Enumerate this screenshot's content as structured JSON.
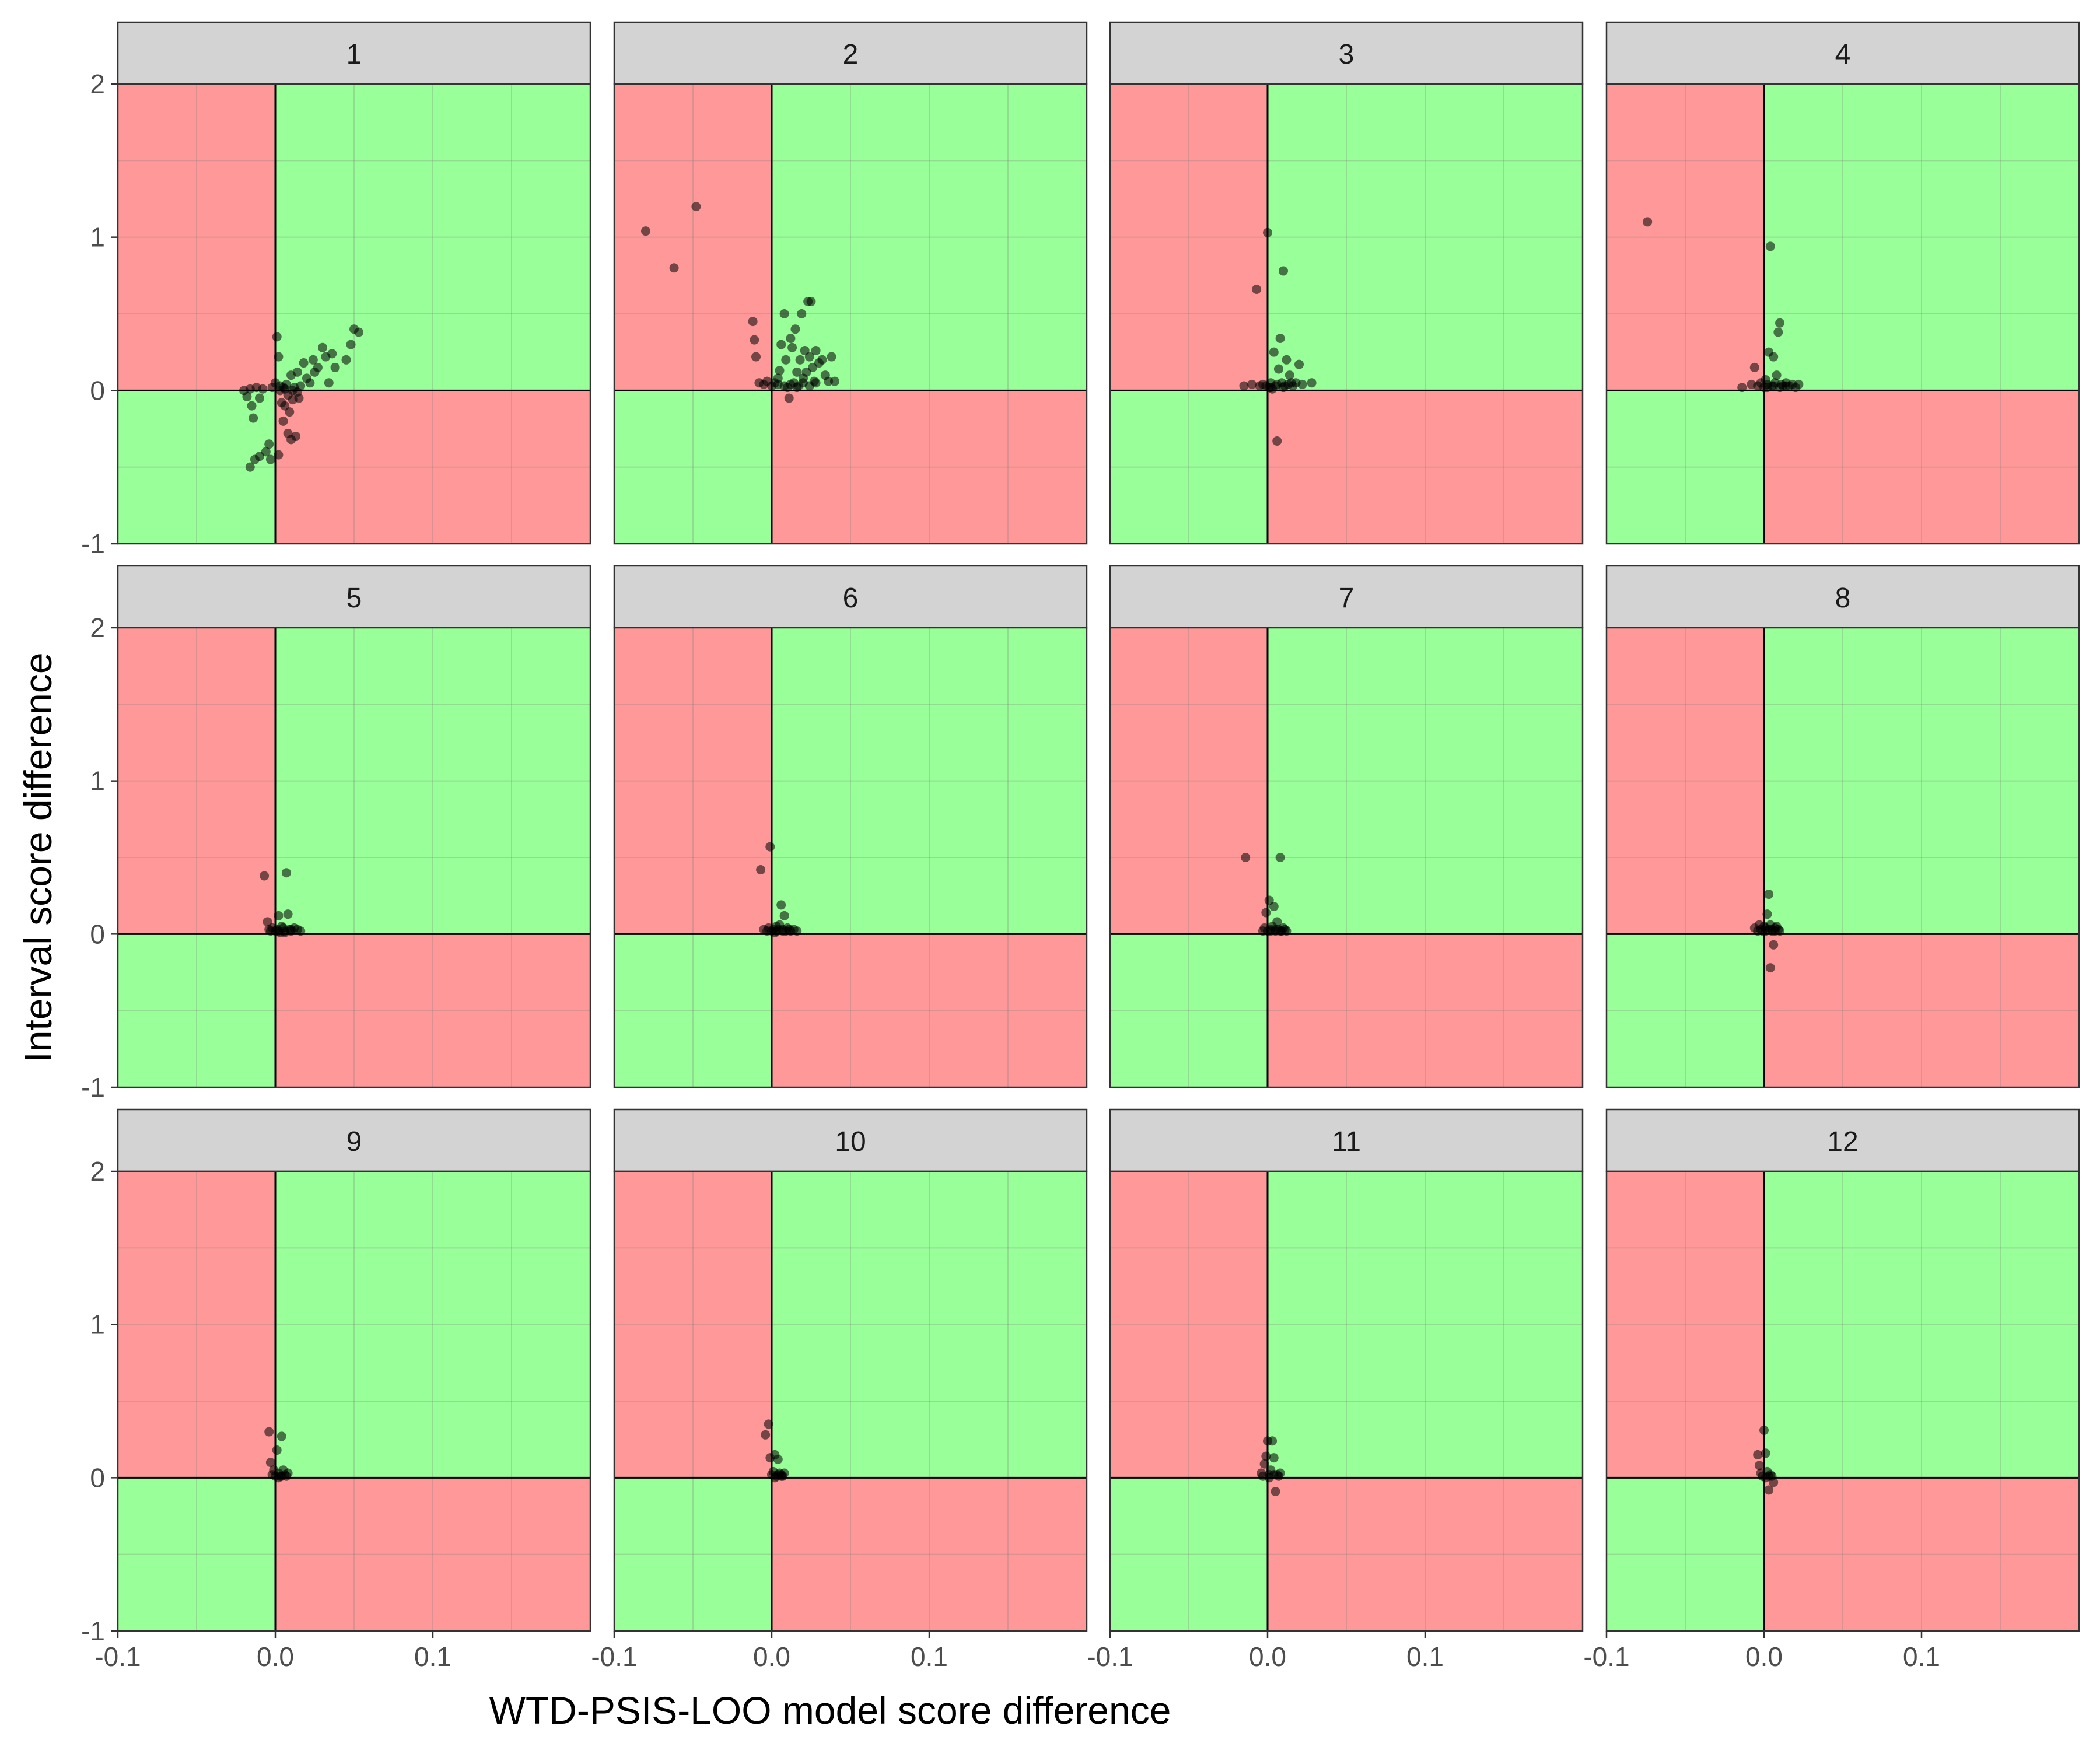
{
  "figure": {
    "xlabel": "WTD-PSIS-LOO model score difference",
    "ylabel": "Interval score difference"
  },
  "axes": {
    "x_ticks": [
      -0.1,
      0.0,
      0.1
    ],
    "x_tick_labels": [
      "-0.1",
      "0.0",
      "0.1"
    ],
    "y_ticks": [
      -1,
      0,
      1,
      2
    ],
    "y_tick_labels": [
      "-1",
      "0",
      "1",
      "2"
    ],
    "xlim": [
      -0.1,
      0.2
    ],
    "ylim": [
      -1,
      2
    ]
  },
  "colors": {
    "good_quadrant": "#99ff99",
    "bad_quadrant": "#ff9999",
    "strip": "#d3d3d3",
    "point": "#000000"
  },
  "chart_data": [
    {
      "type": "scatter",
      "panel": "1",
      "points": [
        [
          -0.02,
          0.0
        ],
        [
          -0.018,
          -0.04
        ],
        [
          -0.016,
          0.01
        ],
        [
          -0.015,
          -0.1
        ],
        [
          -0.014,
          -0.18
        ],
        [
          -0.012,
          0.02
        ],
        [
          -0.01,
          -0.05
        ],
        [
          -0.008,
          0.01
        ],
        [
          -0.006,
          -0.4
        ],
        [
          -0.004,
          -0.35
        ],
        [
          -0.002,
          0.02
        ],
        [
          0.0,
          0.05
        ],
        [
          0.001,
          0.35
        ],
        [
          0.002,
          0.22
        ],
        [
          0.003,
          0.03
        ],
        [
          0.004,
          -0.08
        ],
        [
          0.005,
          -0.2
        ],
        [
          0.006,
          0.01
        ],
        [
          0.007,
          0.04
        ],
        [
          0.008,
          -0.28
        ],
        [
          0.009,
          -0.14
        ],
        [
          0.01,
          0.1
        ],
        [
          0.011,
          -0.06
        ],
        [
          0.012,
          0.02
        ],
        [
          0.013,
          -0.3
        ],
        [
          0.014,
          0.12
        ],
        [
          0.015,
          -0.05
        ],
        [
          0.016,
          0.03
        ],
        [
          0.018,
          0.18
        ],
        [
          0.02,
          0.08
        ],
        [
          0.022,
          0.05
        ],
        [
          0.024,
          0.2
        ],
        [
          0.025,
          0.12
        ],
        [
          0.027,
          0.15
        ],
        [
          0.03,
          0.28
        ],
        [
          0.032,
          0.22
        ],
        [
          0.034,
          0.05
        ],
        [
          0.036,
          0.24
        ],
        [
          0.038,
          0.15
        ],
        [
          0.045,
          0.2
        ],
        [
          0.048,
          0.3
        ],
        [
          0.05,
          0.4
        ],
        [
          0.053,
          0.38
        ],
        [
          -0.016,
          -0.5
        ],
        [
          -0.013,
          -0.45
        ],
        [
          -0.01,
          -0.43
        ],
        [
          -0.003,
          -0.45
        ],
        [
          0.002,
          -0.42
        ],
        [
          0.006,
          -0.1
        ],
        [
          0.01,
          -0.32
        ],
        [
          0.003,
          0.0
        ],
        [
          0.005,
          0.02
        ],
        [
          0.008,
          -0.03
        ],
        [
          0.011,
          0.0
        ],
        [
          0.014,
          -0.01
        ]
      ]
    },
    {
      "type": "scatter",
      "panel": "2",
      "points": [
        [
          -0.08,
          1.04
        ],
        [
          -0.062,
          0.8
        ],
        [
          -0.048,
          1.2
        ],
        [
          -0.012,
          0.45
        ],
        [
          -0.011,
          0.33
        ],
        [
          -0.01,
          0.22
        ],
        [
          -0.008,
          0.05
        ],
        [
          -0.005,
          0.04
        ],
        [
          -0.003,
          0.06
        ],
        [
          0.0,
          0.03
        ],
        [
          0.002,
          0.05
        ],
        [
          0.004,
          0.08
        ],
        [
          0.005,
          0.13
        ],
        [
          0.006,
          0.3
        ],
        [
          0.008,
          0.5
        ],
        [
          0.009,
          0.2
        ],
        [
          0.01,
          0.02
        ],
        [
          0.011,
          -0.05
        ],
        [
          0.012,
          0.34
        ],
        [
          0.013,
          0.28
        ],
        [
          0.014,
          0.05
        ],
        [
          0.015,
          0.4
        ],
        [
          0.016,
          0.12
        ],
        [
          0.017,
          0.03
        ],
        [
          0.018,
          0.2
        ],
        [
          0.019,
          0.5
        ],
        [
          0.02,
          0.08
        ],
        [
          0.021,
          0.26
        ],
        [
          0.022,
          0.12
        ],
        [
          0.023,
          0.58
        ],
        [
          0.024,
          0.22
        ],
        [
          0.025,
          0.58
        ],
        [
          0.026,
          0.15
        ],
        [
          0.027,
          0.06
        ],
        [
          0.028,
          0.26
        ],
        [
          0.03,
          0.18
        ],
        [
          0.032,
          0.2
        ],
        [
          0.034,
          0.1
        ],
        [
          0.036,
          0.06
        ],
        [
          0.038,
          0.22
        ],
        [
          0.04,
          0.06
        ],
        [
          0.004,
          0.04
        ],
        [
          0.008,
          0.03
        ],
        [
          0.012,
          0.04
        ],
        [
          0.016,
          0.02
        ],
        [
          0.02,
          0.05
        ],
        [
          0.024,
          0.03
        ],
        [
          0.028,
          0.05
        ]
      ]
    },
    {
      "type": "scatter",
      "panel": "3",
      "points": [
        [
          -0.015,
          0.03
        ],
        [
          -0.01,
          0.04
        ],
        [
          -0.007,
          0.66
        ],
        [
          -0.005,
          0.03
        ],
        [
          -0.003,
          0.04
        ],
        [
          -0.001,
          0.03
        ],
        [
          0.0,
          1.03
        ],
        [
          0.001,
          0.02
        ],
        [
          0.002,
          0.05
        ],
        [
          0.003,
          0.01
        ],
        [
          0.004,
          0.25
        ],
        [
          0.005,
          0.03
        ],
        [
          0.006,
          -0.33
        ],
        [
          0.007,
          0.14
        ],
        [
          0.008,
          0.34
        ],
        [
          0.009,
          0.05
        ],
        [
          0.01,
          0.78
        ],
        [
          0.011,
          0.03
        ],
        [
          0.012,
          0.2
        ],
        [
          0.013,
          0.04
        ],
        [
          0.014,
          0.1
        ],
        [
          0.016,
          0.03
        ],
        [
          0.018,
          0.05
        ],
        [
          0.02,
          0.17
        ],
        [
          0.022,
          0.04
        ],
        [
          0.028,
          0.05
        ],
        [
          0.002,
          0.02
        ],
        [
          0.006,
          0.04
        ],
        [
          0.01,
          0.02
        ],
        [
          0.015,
          0.05
        ]
      ]
    },
    {
      "type": "scatter",
      "panel": "4",
      "points": [
        [
          -0.074,
          1.1
        ],
        [
          -0.014,
          0.02
        ],
        [
          -0.008,
          0.04
        ],
        [
          -0.006,
          0.15
        ],
        [
          -0.004,
          0.03
        ],
        [
          -0.002,
          0.05
        ],
        [
          0.0,
          0.02
        ],
        [
          0.001,
          0.07
        ],
        [
          0.002,
          0.04
        ],
        [
          0.003,
          0.25
        ],
        [
          0.004,
          0.94
        ],
        [
          0.005,
          0.03
        ],
        [
          0.006,
          0.22
        ],
        [
          0.007,
          0.05
        ],
        [
          0.008,
          0.1
        ],
        [
          0.009,
          0.38
        ],
        [
          0.01,
          0.44
        ],
        [
          0.011,
          0.04
        ],
        [
          0.012,
          0.03
        ],
        [
          0.014,
          0.05
        ],
        [
          0.016,
          0.03
        ],
        [
          0.018,
          0.04
        ],
        [
          0.02,
          0.02
        ],
        [
          0.022,
          0.04
        ],
        [
          0.002,
          0.02
        ],
        [
          0.006,
          0.03
        ],
        [
          0.01,
          0.02
        ],
        [
          0.014,
          0.03
        ]
      ]
    },
    {
      "type": "scatter",
      "panel": "5",
      "points": [
        [
          -0.007,
          0.38
        ],
        [
          -0.005,
          0.08
        ],
        [
          -0.004,
          0.03
        ],
        [
          -0.003,
          0.02
        ],
        [
          -0.002,
          0.04
        ],
        [
          0.0,
          0.02
        ],
        [
          0.001,
          0.03
        ],
        [
          0.002,
          0.12
        ],
        [
          0.003,
          0.01
        ],
        [
          0.004,
          0.05
        ],
        [
          0.005,
          0.04
        ],
        [
          0.006,
          0.02
        ],
        [
          0.007,
          0.4
        ],
        [
          0.008,
          0.13
        ],
        [
          0.009,
          0.03
        ],
        [
          0.01,
          0.02
        ],
        [
          0.012,
          0.04
        ],
        [
          0.014,
          0.03
        ],
        [
          0.016,
          0.02
        ],
        [
          0.002,
          0.02
        ],
        [
          0.006,
          0.01
        ],
        [
          0.01,
          0.03
        ]
      ]
    },
    {
      "type": "scatter",
      "panel": "6",
      "points": [
        [
          -0.007,
          0.42
        ],
        [
          -0.005,
          0.03
        ],
        [
          -0.003,
          0.02
        ],
        [
          -0.002,
          0.04
        ],
        [
          -0.001,
          0.57
        ],
        [
          0.0,
          0.02
        ],
        [
          0.001,
          0.03
        ],
        [
          0.002,
          0.01
        ],
        [
          0.003,
          0.05
        ],
        [
          0.004,
          0.03
        ],
        [
          0.005,
          0.06
        ],
        [
          0.006,
          0.19
        ],
        [
          0.007,
          0.03
        ],
        [
          0.008,
          0.12
        ],
        [
          0.009,
          0.02
        ],
        [
          0.01,
          0.04
        ],
        [
          0.012,
          0.02
        ],
        [
          0.014,
          0.03
        ],
        [
          0.016,
          0.02
        ],
        [
          0.003,
          0.02
        ],
        [
          0.007,
          0.02
        ],
        [
          0.011,
          0.03
        ]
      ]
    },
    {
      "type": "scatter",
      "panel": "7",
      "points": [
        [
          -0.014,
          0.5
        ],
        [
          -0.003,
          0.02
        ],
        [
          -0.002,
          0.04
        ],
        [
          -0.001,
          0.14
        ],
        [
          0.0,
          0.02
        ],
        [
          0.001,
          0.22
        ],
        [
          0.002,
          0.03
        ],
        [
          0.003,
          0.05
        ],
        [
          0.004,
          0.18
        ],
        [
          0.005,
          0.02
        ],
        [
          0.006,
          0.08
        ],
        [
          0.007,
          0.03
        ],
        [
          0.008,
          0.5
        ],
        [
          0.009,
          0.02
        ],
        [
          0.01,
          0.04
        ],
        [
          0.011,
          0.03
        ],
        [
          0.012,
          0.02
        ],
        [
          0.002,
          0.02
        ],
        [
          0.005,
          0.03
        ],
        [
          0.008,
          0.02
        ]
      ]
    },
    {
      "type": "scatter",
      "panel": "8",
      "points": [
        [
          -0.006,
          0.04
        ],
        [
          -0.004,
          0.02
        ],
        [
          -0.003,
          0.06
        ],
        [
          -0.002,
          0.03
        ],
        [
          -0.001,
          0.02
        ],
        [
          0.0,
          0.05
        ],
        [
          0.001,
          0.04
        ],
        [
          0.002,
          0.13
        ],
        [
          0.003,
          0.26
        ],
        [
          0.004,
          0.06
        ],
        [
          0.005,
          0.03
        ],
        [
          0.006,
          -0.07
        ],
        [
          0.007,
          0.02
        ],
        [
          0.008,
          0.05
        ],
        [
          0.009,
          0.03
        ],
        [
          0.01,
          0.02
        ],
        [
          0.004,
          -0.22
        ],
        [
          0.001,
          0.02
        ],
        [
          0.003,
          0.03
        ],
        [
          0.005,
          0.02
        ],
        [
          0.007,
          0.04
        ]
      ]
    },
    {
      "type": "scatter",
      "panel": "9",
      "points": [
        [
          -0.004,
          0.3
        ],
        [
          -0.003,
          0.1
        ],
        [
          -0.002,
          0.02
        ],
        [
          -0.001,
          0.05
        ],
        [
          0.0,
          0.01
        ],
        [
          0.001,
          0.18
        ],
        [
          0.002,
          0.03
        ],
        [
          0.003,
          0.01
        ],
        [
          0.004,
          0.27
        ],
        [
          0.005,
          0.05
        ],
        [
          0.006,
          0.02
        ],
        [
          0.007,
          0.01
        ],
        [
          0.008,
          0.03
        ],
        [
          0.002,
          0.0
        ],
        [
          0.004,
          0.01
        ]
      ]
    },
    {
      "type": "scatter",
      "panel": "10",
      "points": [
        [
          -0.004,
          0.28
        ],
        [
          -0.002,
          0.35
        ],
        [
          -0.001,
          0.13
        ],
        [
          0.0,
          0.02
        ],
        [
          0.001,
          0.04
        ],
        [
          0.002,
          0.15
        ],
        [
          0.003,
          0.01
        ],
        [
          0.004,
          0.12
        ],
        [
          0.005,
          0.03
        ],
        [
          0.006,
          0.02
        ],
        [
          0.007,
          0.01
        ],
        [
          0.008,
          0.03
        ],
        [
          0.002,
          0.0
        ],
        [
          0.004,
          0.02
        ],
        [
          0.006,
          0.01
        ]
      ]
    },
    {
      "type": "scatter",
      "panel": "11",
      "points": [
        [
          -0.004,
          0.03
        ],
        [
          -0.003,
          0.01
        ],
        [
          -0.002,
          0.09
        ],
        [
          -0.001,
          0.14
        ],
        [
          0.0,
          0.24
        ],
        [
          0.001,
          0.02
        ],
        [
          0.002,
          0.05
        ],
        [
          0.003,
          0.24
        ],
        [
          0.004,
          0.13
        ],
        [
          0.005,
          -0.09
        ],
        [
          0.006,
          0.02
        ],
        [
          0.007,
          0.01
        ],
        [
          0.008,
          0.03
        ],
        [
          0.001,
          0.0
        ],
        [
          0.004,
          0.02
        ]
      ]
    },
    {
      "type": "scatter",
      "panel": "12",
      "points": [
        [
          -0.004,
          0.15
        ],
        [
          -0.003,
          0.08
        ],
        [
          -0.002,
          0.03
        ],
        [
          -0.001,
          0.01
        ],
        [
          0.0,
          0.31
        ],
        [
          0.001,
          0.16
        ],
        [
          0.002,
          0.04
        ],
        [
          0.003,
          -0.08
        ],
        [
          0.004,
          0.02
        ],
        [
          0.005,
          0.01
        ],
        [
          0.006,
          -0.03
        ],
        [
          0.001,
          0.0
        ],
        [
          0.003,
          0.01
        ]
      ]
    }
  ]
}
